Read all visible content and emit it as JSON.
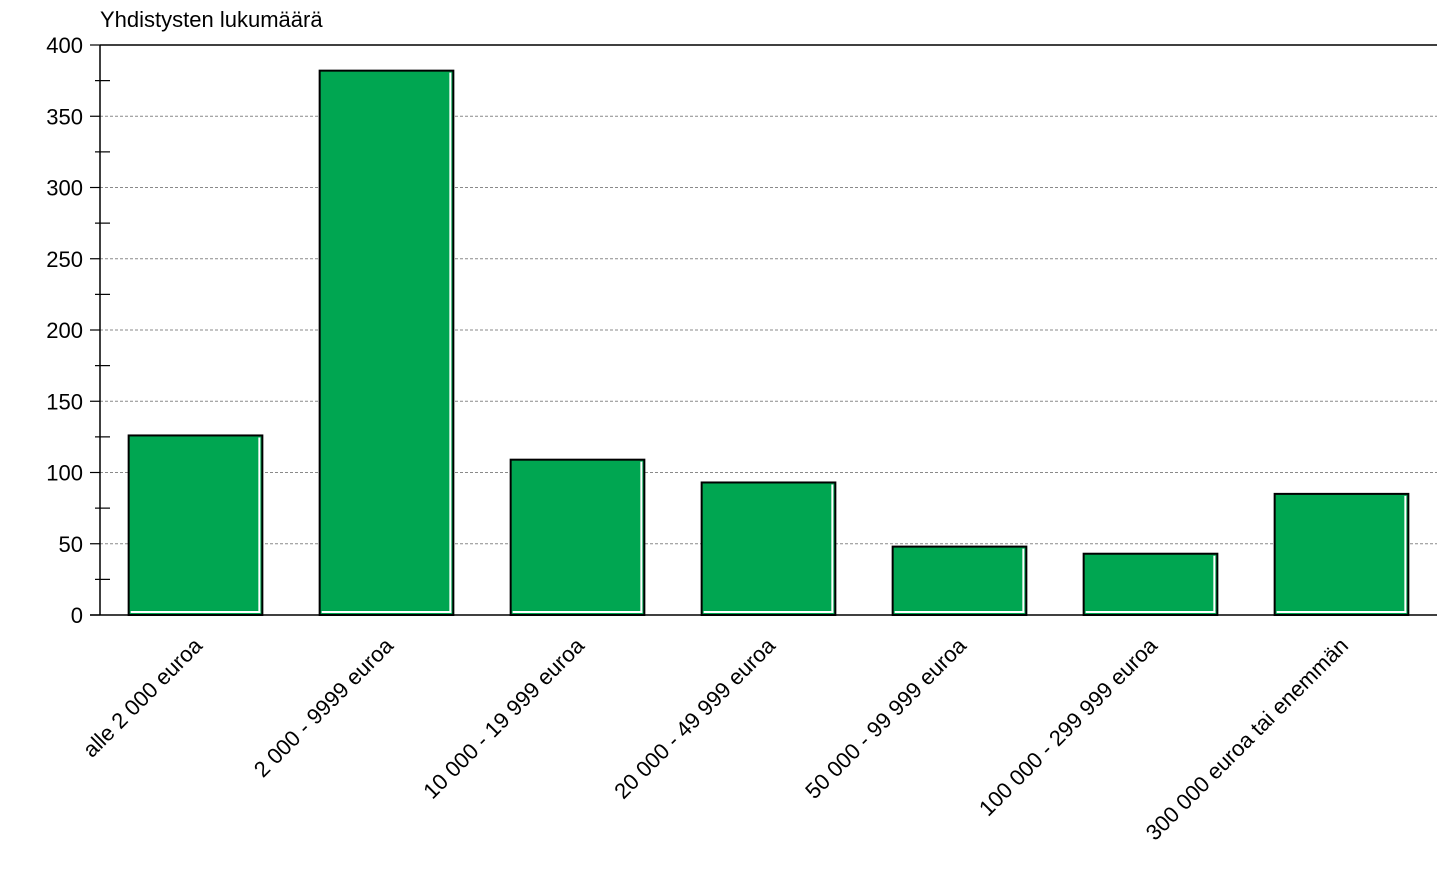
{
  "chart_data": {
    "type": "bar",
    "title": "",
    "ylabel": "Yhdistysten lukumäärä",
    "xlabel": "",
    "categories": [
      "alle 2 000 euroa",
      "2 000 - 9999 euroa",
      "10 000 - 19 999 euroa",
      "20 000 - 49 999 euroa",
      "50 000 - 99 999 euroa",
      "100 000 - 299 999 euroa",
      "300 000 euroa tai enemmän"
    ],
    "values": [
      126,
      382,
      109,
      93,
      48,
      43,
      85
    ],
    "ylim": [
      0,
      400
    ],
    "yticks": [
      "0",
      "50",
      "100",
      "150",
      "200",
      "250",
      "300",
      "350",
      "400"
    ],
    "grid": true,
    "bar_color": "#00a651",
    "legend": "none"
  }
}
